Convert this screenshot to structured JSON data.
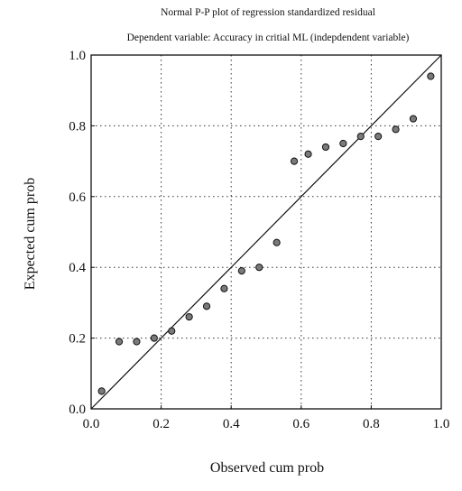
{
  "chart_data": {
    "type": "scatter",
    "title": "Normal P-P plot of regression standardized residual",
    "subtitle": "Dependent variable: Accuracy in critial ML (indepdendent variable)",
    "xlabel": "Observed cum prob",
    "ylabel": "Expected cum prob",
    "xlim": [
      0.0,
      1.0
    ],
    "ylim": [
      0.0,
      1.0
    ],
    "x_ticks": [
      "0.0",
      "0.2",
      "0.4",
      "0.6",
      "0.8",
      "1.0"
    ],
    "y_ticks": [
      "0.0",
      "0.2",
      "0.4",
      "0.6",
      "0.8",
      "1.0"
    ],
    "grid": "dotted",
    "reference_line": {
      "from": [
        0.0,
        0.0
      ],
      "to": [
        1.0,
        1.0
      ]
    },
    "marker_color": "#7a7a7a",
    "points": [
      {
        "x": 0.03,
        "y": 0.05
      },
      {
        "x": 0.08,
        "y": 0.19
      },
      {
        "x": 0.13,
        "y": 0.19
      },
      {
        "x": 0.18,
        "y": 0.2
      },
      {
        "x": 0.23,
        "y": 0.22
      },
      {
        "x": 0.28,
        "y": 0.26
      },
      {
        "x": 0.33,
        "y": 0.29
      },
      {
        "x": 0.38,
        "y": 0.34
      },
      {
        "x": 0.43,
        "y": 0.39
      },
      {
        "x": 0.48,
        "y": 0.4
      },
      {
        "x": 0.53,
        "y": 0.47
      },
      {
        "x": 0.58,
        "y": 0.7
      },
      {
        "x": 0.62,
        "y": 0.72
      },
      {
        "x": 0.67,
        "y": 0.74
      },
      {
        "x": 0.72,
        "y": 0.75
      },
      {
        "x": 0.77,
        "y": 0.77
      },
      {
        "x": 0.82,
        "y": 0.77
      },
      {
        "x": 0.87,
        "y": 0.79
      },
      {
        "x": 0.92,
        "y": 0.82
      },
      {
        "x": 0.97,
        "y": 0.94
      }
    ]
  }
}
